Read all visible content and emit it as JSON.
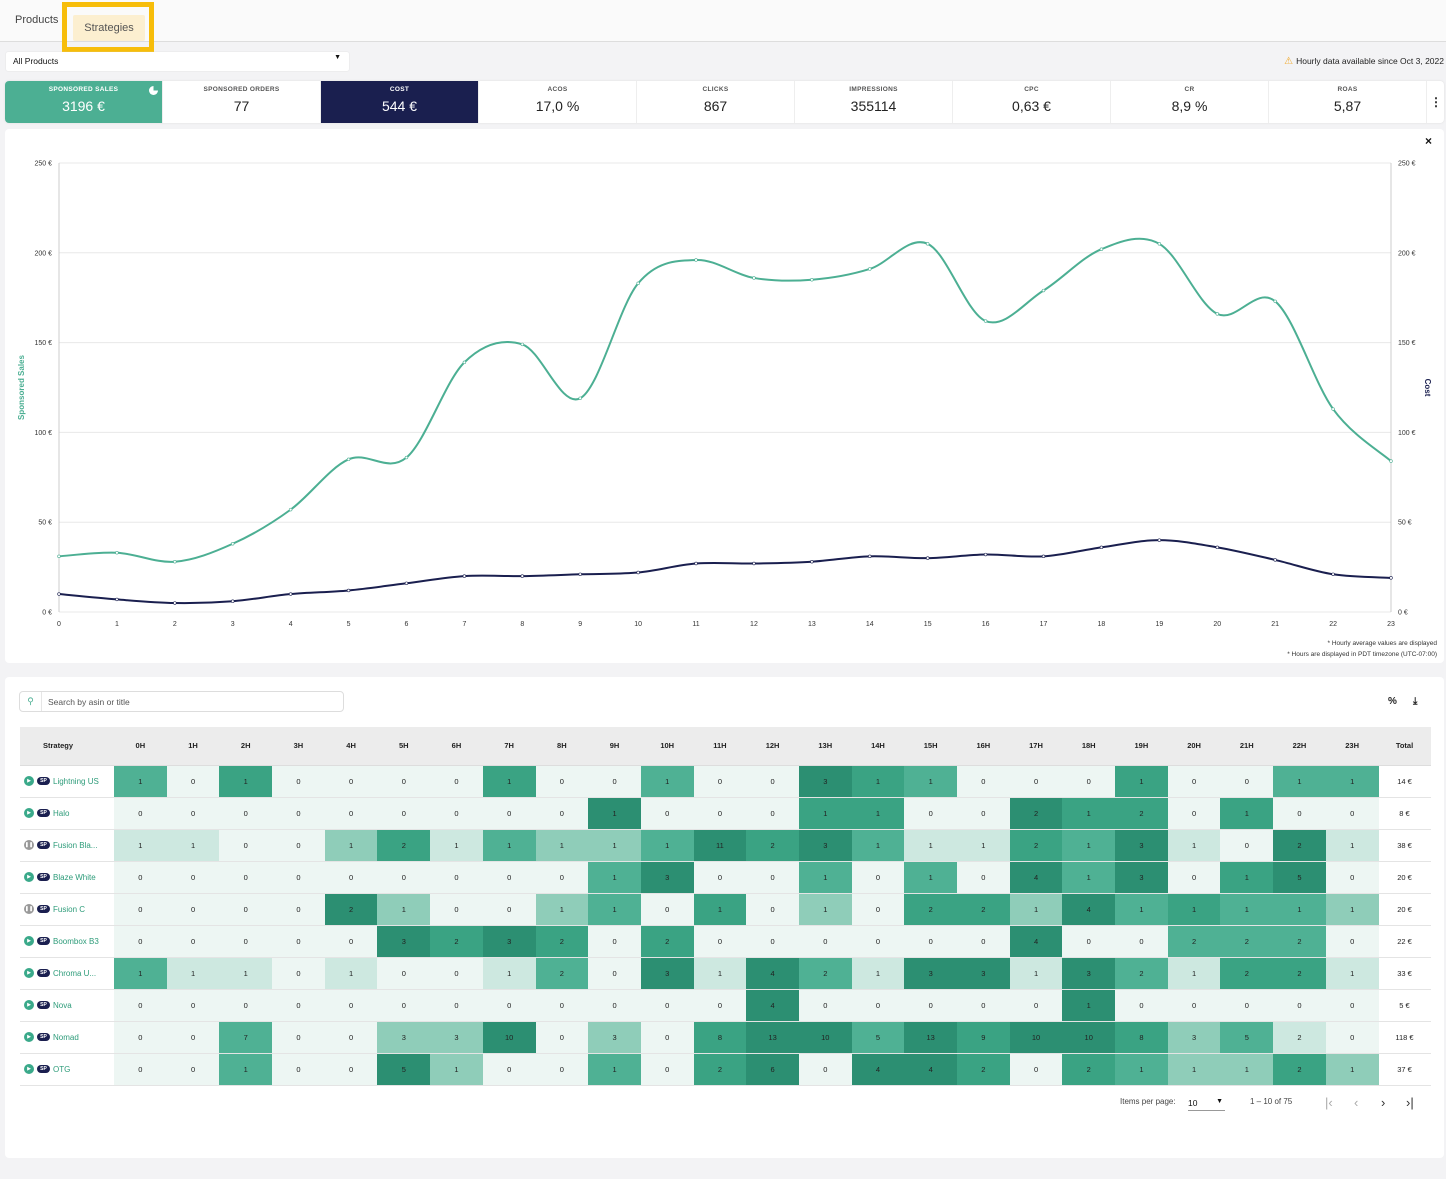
{
  "tabs": {
    "products": "Products",
    "strategies": "Strategies"
  },
  "product_filter": {
    "value": "All Products"
  },
  "hourly_note": "Hourly data available since Oct 3, 2022",
  "metrics": [
    {
      "label": "SPONSORED SALES",
      "value": "3196 €",
      "state": "selected-green"
    },
    {
      "label": "SPONSORED ORDERS",
      "value": "77",
      "state": ""
    },
    {
      "label": "COST",
      "value": "544 €",
      "state": "selected-navy"
    },
    {
      "label": "ACOS",
      "value": "17,0 %",
      "state": ""
    },
    {
      "label": "CLICKS",
      "value": "867",
      "state": ""
    },
    {
      "label": "IMPRESSIONS",
      "value": "355114",
      "state": ""
    },
    {
      "label": "CPC",
      "value": "0,63 €",
      "state": ""
    },
    {
      "label": "CR",
      "value": "8,9 %",
      "state": ""
    },
    {
      "label": "ROAS",
      "value": "5,87",
      "state": ""
    }
  ],
  "chart_data": {
    "type": "line",
    "x": [
      0,
      1,
      2,
      3,
      4,
      5,
      6,
      7,
      8,
      9,
      10,
      11,
      12,
      13,
      14,
      15,
      16,
      17,
      18,
      19,
      20,
      21,
      22,
      23
    ],
    "series": [
      {
        "name": "Sponsored Sales",
        "axis": "left",
        "color": "#4caf93",
        "values": [
          31,
          33,
          28,
          38,
          57,
          85,
          86,
          139,
          149,
          119,
          183,
          196,
          186,
          185,
          191,
          205,
          162,
          179,
          202,
          205,
          166,
          173,
          113,
          84
        ]
      },
      {
        "name": "Cost",
        "axis": "right",
        "color": "#1a1f4f",
        "values": [
          10,
          7,
          5,
          6,
          10,
          12,
          16,
          20,
          20,
          21,
          22,
          27,
          27,
          28,
          31,
          30,
          32,
          31,
          36,
          40,
          36,
          29,
          21,
          19
        ]
      }
    ],
    "ylabel_left": "Sponsored Sales",
    "ylabel_right": "Cost",
    "yticks": [
      "0 €",
      "50 €",
      "100 €",
      "150 €",
      "200 €",
      "250 €"
    ],
    "ylim": [
      0,
      250
    ],
    "xlim": [
      0,
      23
    ],
    "grid": true
  },
  "chart_notes": [
    "* Hourly average values are displayed",
    "* Hours are displayed in PDT timezone (UTC-07:00)"
  ],
  "close_icon": "×",
  "search": {
    "placeholder": "Search by asin or title"
  },
  "table": {
    "headers": [
      "Strategy",
      "0H",
      "1H",
      "2H",
      "3H",
      "4H",
      "5H",
      "6H",
      "7H",
      "8H",
      "9H",
      "10H",
      "11H",
      "12H",
      "13H",
      "14H",
      "15H",
      "16H",
      "17H",
      "18H",
      "19H",
      "20H",
      "21H",
      "22H",
      "23H",
      "Total"
    ],
    "rows": [
      {
        "name": "Lightning US",
        "status": "active",
        "badge": "SP",
        "values": [
          1,
          0,
          1,
          0,
          0,
          0,
          0,
          1,
          0,
          0,
          1,
          0,
          0,
          3,
          1,
          1,
          0,
          0,
          0,
          1,
          0,
          0,
          1,
          1
        ],
        "levels": [
          3,
          0,
          4,
          0,
          0,
          0,
          0,
          4,
          0,
          0,
          3,
          0,
          0,
          5,
          4,
          3,
          0,
          0,
          0,
          4,
          0,
          0,
          3,
          3
        ],
        "total": "14 €"
      },
      {
        "name": "Halo",
        "status": "active",
        "badge": "SP",
        "values": [
          0,
          0,
          0,
          0,
          0,
          0,
          0,
          0,
          0,
          1,
          0,
          0,
          0,
          1,
          1,
          0,
          0,
          2,
          1,
          2,
          0,
          1,
          0,
          0
        ],
        "levels": [
          0,
          0,
          0,
          0,
          0,
          0,
          0,
          0,
          0,
          5,
          0,
          0,
          0,
          4,
          4,
          0,
          0,
          5,
          4,
          4,
          0,
          4,
          0,
          0
        ],
        "total": "8 €"
      },
      {
        "name": "Fusion Bla...",
        "status": "paused",
        "badge": "SP",
        "values": [
          1,
          1,
          0,
          0,
          1,
          2,
          1,
          1,
          1,
          1,
          1,
          11,
          2,
          3,
          1,
          1,
          1,
          2,
          1,
          3,
          1,
          0,
          2,
          1
        ],
        "levels": [
          1,
          1,
          0,
          0,
          2,
          4,
          1,
          3,
          2,
          2,
          3,
          5,
          4,
          5,
          3,
          1,
          1,
          4,
          3,
          5,
          1,
          0,
          5,
          1
        ],
        "total": "38 €"
      },
      {
        "name": "Blaze White",
        "status": "active",
        "badge": "SP",
        "values": [
          0,
          0,
          0,
          0,
          0,
          0,
          0,
          0,
          0,
          1,
          3,
          0,
          0,
          1,
          0,
          1,
          0,
          4,
          1,
          3,
          0,
          1,
          5,
          0
        ],
        "levels": [
          0,
          0,
          0,
          0,
          0,
          0,
          0,
          0,
          0,
          3,
          5,
          0,
          0,
          3,
          0,
          3,
          0,
          5,
          3,
          5,
          0,
          4,
          5,
          0
        ],
        "total": "20 €"
      },
      {
        "name": "Fusion C",
        "status": "paused",
        "badge": "SP",
        "values": [
          0,
          0,
          0,
          0,
          2,
          1,
          0,
          0,
          1,
          1,
          0,
          1,
          0,
          1,
          0,
          2,
          2,
          1,
          4,
          1,
          1,
          1,
          1,
          1
        ],
        "levels": [
          0,
          0,
          0,
          0,
          5,
          2,
          0,
          0,
          2,
          3,
          0,
          4,
          0,
          2,
          0,
          4,
          4,
          2,
          5,
          3,
          4,
          3,
          3,
          2
        ],
        "total": "20 €"
      },
      {
        "name": "Boombox B3",
        "status": "active",
        "badge": "SP",
        "values": [
          0,
          0,
          0,
          0,
          0,
          3,
          2,
          3,
          2,
          0,
          2,
          0,
          0,
          0,
          0,
          0,
          0,
          4,
          0,
          0,
          2,
          2,
          2,
          0
        ],
        "levels": [
          0,
          0,
          0,
          0,
          0,
          5,
          4,
          5,
          4,
          0,
          4,
          0,
          0,
          0,
          0,
          0,
          0,
          5,
          0,
          0,
          3,
          3,
          3,
          0
        ],
        "total": "22 €"
      },
      {
        "name": "Chroma U...",
        "status": "active",
        "badge": "SP",
        "values": [
          1,
          1,
          1,
          0,
          1,
          0,
          0,
          1,
          2,
          0,
          3,
          1,
          4,
          2,
          1,
          3,
          3,
          1,
          3,
          2,
          1,
          2,
          2,
          1
        ],
        "levels": [
          3,
          1,
          1,
          0,
          1,
          0,
          0,
          1,
          3,
          0,
          5,
          1,
          5,
          3,
          1,
          5,
          5,
          1,
          5,
          3,
          1,
          4,
          4,
          1
        ],
        "total": "33 €"
      },
      {
        "name": "Nova",
        "status": "active",
        "badge": "SP",
        "values": [
          0,
          0,
          0,
          0,
          0,
          0,
          0,
          0,
          0,
          0,
          0,
          0,
          4,
          0,
          0,
          0,
          0,
          0,
          1,
          0,
          0,
          0,
          0,
          0
        ],
        "levels": [
          0,
          0,
          0,
          0,
          0,
          0,
          0,
          0,
          0,
          0,
          0,
          0,
          5,
          0,
          0,
          0,
          0,
          0,
          5,
          0,
          0,
          0,
          0,
          0
        ],
        "total": "5 €"
      },
      {
        "name": "Nomad",
        "status": "active",
        "badge": "SP",
        "values": [
          0,
          0,
          7,
          0,
          0,
          3,
          3,
          10,
          0,
          3,
          0,
          8,
          13,
          10,
          5,
          13,
          9,
          10,
          10,
          8,
          3,
          5,
          2,
          0
        ],
        "levels": [
          0,
          0,
          3,
          0,
          0,
          2,
          2,
          5,
          0,
          2,
          0,
          4,
          5,
          5,
          3,
          5,
          4,
          5,
          5,
          4,
          2,
          3,
          1,
          0
        ],
        "total": "118 €"
      },
      {
        "name": "OTG",
        "status": "active",
        "badge": "SP",
        "values": [
          0,
          0,
          1,
          0,
          0,
          5,
          1,
          0,
          0,
          1,
          0,
          2,
          6,
          0,
          4,
          4,
          2,
          0,
          2,
          1,
          1,
          1,
          2,
          1
        ],
        "levels": [
          0,
          0,
          3,
          0,
          0,
          5,
          2,
          0,
          0,
          3,
          0,
          4,
          5,
          0,
          5,
          5,
          4,
          0,
          4,
          3,
          2,
          2,
          4,
          2
        ],
        "total": "37 €"
      }
    ]
  },
  "paginator": {
    "items_per_page_label": "Items per page:",
    "page_size": "10",
    "range": "1 – 10 of 75"
  },
  "colors": {
    "heat_levels": [
      "#edf6f3",
      "#cde8e0",
      "#8fcdb9",
      "#4fb194",
      "#3aa383",
      "#2c8f72"
    ],
    "accent": "#4caf93",
    "navy": "#1a1f4f",
    "highlight": "#f7bd0a"
  }
}
